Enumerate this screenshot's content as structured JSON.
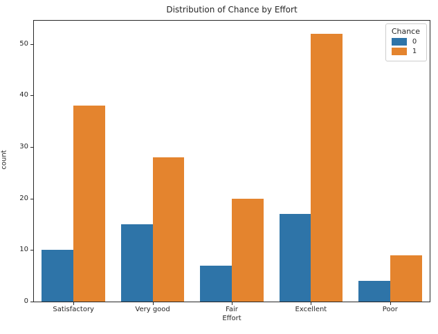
{
  "chart_data": {
    "type": "bar",
    "title": "Distribution of Chance by Effort",
    "xlabel": "Effort",
    "ylabel": "count",
    "categories": [
      "Satisfactory",
      "Very good",
      "Fair",
      "Excellent",
      "Poor"
    ],
    "series": [
      {
        "name": "0",
        "color": "#2e74a8",
        "values": [
          10,
          15,
          7,
          17,
          4
        ]
      },
      {
        "name": "1",
        "color": "#e4842e",
        "values": [
          38,
          28,
          20,
          52,
          9
        ]
      }
    ],
    "legend": {
      "title": "Chance",
      "position": "upper right"
    },
    "y_ticks": [
      0,
      10,
      20,
      30,
      40,
      50
    ],
    "ylim": [
      0,
      54.5
    ],
    "grid": false,
    "spine_color": "#262626",
    "text_color": "#262626"
  }
}
